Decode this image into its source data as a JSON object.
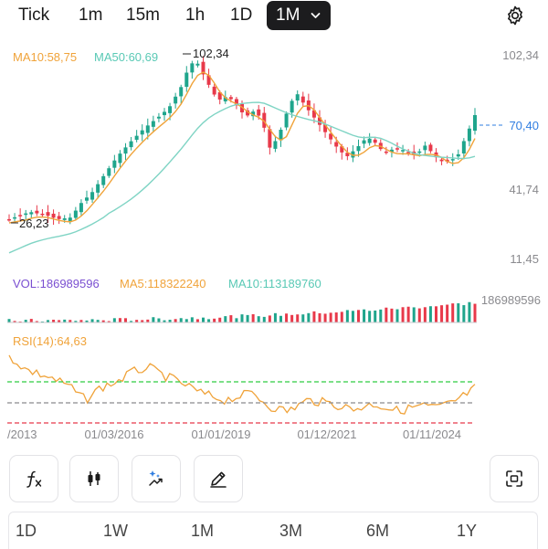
{
  "toolbar": {
    "timeframes": [
      "Tick",
      "1m",
      "15m",
      "1h",
      "1D",
      "1M"
    ],
    "active_timeframe": "1M",
    "settings_icon": "gear-icon"
  },
  "chart": {
    "ma10_label": "MA10:58,75",
    "ma50_label": "MA50:60,69",
    "price_axis": [
      "102,34",
      "70,40",
      "41,74",
      "11,45"
    ],
    "current_price": "70,40",
    "high_marker": "102,34",
    "low_marker": "26,23",
    "volume_max_label": "186989596",
    "vol_label": "VOL:186989596",
    "ma5_label": "MA5:118322240",
    "vol_ma10_label": "MA10:113189760",
    "rsi_label": "RSI(14):64,63",
    "date_axis": [
      "/2013",
      "01/03/2016",
      "01/01/2019",
      "01/12/2021",
      "01/11/2024"
    ]
  },
  "colors": {
    "up": "#1fa58c",
    "down": "#e8394a",
    "ma10": "#f0a33a",
    "ma50": "#7fd4c4",
    "volume_label": "#7a4fd1",
    "rsi": "#f0a33a",
    "overbought_line": "#2ecc40",
    "oversold_line": "#e8394a"
  },
  "tools": [
    "formula-icon",
    "candlestick-icon",
    "magic-icon",
    "pen-icon"
  ],
  "fullscreen_icon": "fullscreen-icon",
  "periods": [
    "1D",
    "1W",
    "1M",
    "3M",
    "6M",
    "1Y"
  ]
}
